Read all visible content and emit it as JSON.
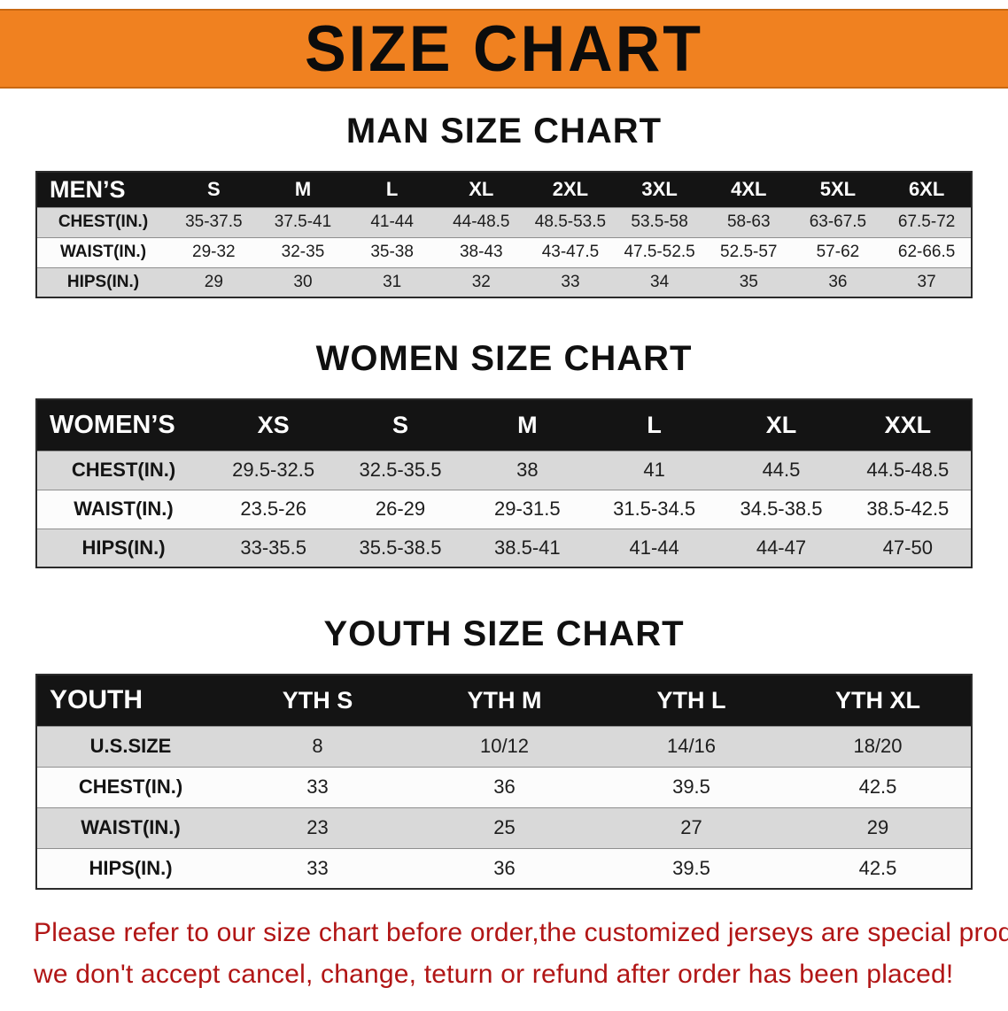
{
  "banner": {
    "title": "SIZE CHART",
    "bg": "#f08120"
  },
  "men": {
    "heading": "MAN SIZE CHART",
    "table": {
      "corner": "MEN’S",
      "sizes": [
        "S",
        "M",
        "L",
        "XL",
        "2XL",
        "3XL",
        "4XL",
        "5XL",
        "6XL"
      ],
      "rows": [
        {
          "label": "CHEST(IN.)",
          "values": [
            "35-37.5",
            "37.5-41",
            "41-44",
            "44-48.5",
            "48.5-53.5",
            "53.5-58",
            "58-63",
            "63-67.5",
            "67.5-72"
          ]
        },
        {
          "label": "WAIST(IN.)",
          "values": [
            "29-32",
            "32-35",
            "35-38",
            "38-43",
            "43-47.5",
            "47.5-52.5",
            "52.5-57",
            "57-62",
            "62-66.5"
          ]
        },
        {
          "label": "HIPS(IN.)",
          "values": [
            "29",
            "30",
            "31",
            "32",
            "33",
            "34",
            "35",
            "36",
            "37"
          ]
        }
      ]
    }
  },
  "women": {
    "heading": "WOMEN SIZE CHART",
    "table": {
      "corner": "WOMEN’S",
      "sizes": [
        "XS",
        "S",
        "M",
        "L",
        "XL",
        "XXL"
      ],
      "rows": [
        {
          "label": "CHEST(IN.)",
          "values": [
            "29.5-32.5",
            "32.5-35.5",
            "38",
            "41",
            "44.5",
            "44.5-48.5"
          ]
        },
        {
          "label": "WAIST(IN.)",
          "values": [
            "23.5-26",
            "26-29",
            "29-31.5",
            "31.5-34.5",
            "34.5-38.5",
            "38.5-42.5"
          ]
        },
        {
          "label": "HIPS(IN.)",
          "values": [
            "33-35.5",
            "35.5-38.5",
            "38.5-41",
            "41-44",
            "44-47",
            "47-50"
          ]
        }
      ]
    }
  },
  "youth": {
    "heading": "YOUTH SIZE CHART",
    "table": {
      "corner": "YOUTH",
      "sizes": [
        "YTH S",
        "YTH M",
        "YTH L",
        "YTH XL"
      ],
      "rows": [
        {
          "label": "U.S.SIZE",
          "values": [
            "8",
            "10/12",
            "14/16",
            "18/20"
          ]
        },
        {
          "label": "CHEST(IN.)",
          "values": [
            "33",
            "36",
            "39.5",
            "42.5"
          ]
        },
        {
          "label": "WAIST(IN.)",
          "values": [
            "23",
            "25",
            "27",
            "29"
          ]
        },
        {
          "label": "HIPS(IN.)",
          "values": [
            "33",
            "36",
            "39.5",
            "42.5"
          ]
        }
      ]
    }
  },
  "footer": {
    "color": "#b11515",
    "line1": "Please refer to our size chart before order,the customized jerseys are special products,",
    "line2": "we don't accept cancel, change, teturn or refund after order has been placed!"
  }
}
